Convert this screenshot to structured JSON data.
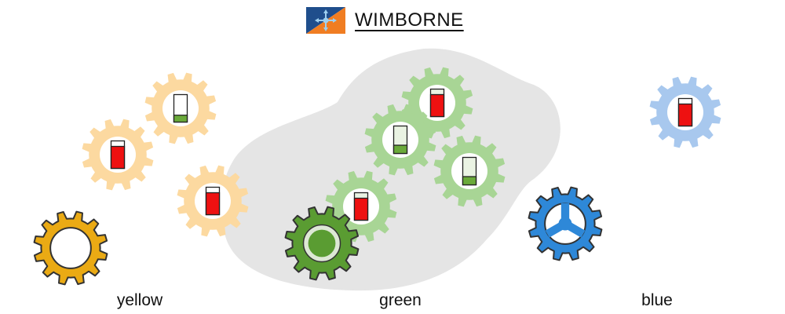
{
  "header": {
    "title": "WIMBORNE",
    "logo_icon": "compass-flag-icon"
  },
  "palette": {
    "yellow_light": "#fcd9a0",
    "yellow_dark": "#eaaa14",
    "green_light": "#a8d595",
    "green_dark": "#5a9c32",
    "blue_light": "#a8c8ee",
    "blue_dark": "#2e88d8",
    "blob": "#e5e5e5",
    "level_full": "#ee1111",
    "level_low": "#6aaa3a"
  },
  "groups": [
    {
      "label": "yellow",
      "color": "yellow"
    },
    {
      "label": "green",
      "color": "green"
    },
    {
      "label": "blue",
      "color": "blue"
    }
  ],
  "gears": [
    {
      "group": "yellow",
      "style": "light",
      "indicator": "full",
      "level": 0.8
    },
    {
      "group": "yellow",
      "style": "light",
      "indicator": "low",
      "level": 0.25
    },
    {
      "group": "yellow",
      "style": "light",
      "indicator": "full",
      "level": 0.8
    },
    {
      "group": "yellow",
      "style": "dark",
      "indicator": "none"
    },
    {
      "group": "green",
      "style": "light",
      "indicator": "full",
      "level": 0.8
    },
    {
      "group": "green",
      "style": "light",
      "indicator": "low",
      "level": 0.3
    },
    {
      "group": "green",
      "style": "light",
      "indicator": "low",
      "level": 0.3
    },
    {
      "group": "green",
      "style": "light",
      "indicator": "full",
      "level": 0.8
    },
    {
      "group": "green",
      "style": "dark",
      "indicator": "none"
    },
    {
      "group": "blue",
      "style": "light",
      "indicator": "full",
      "level": 0.8
    },
    {
      "group": "blue",
      "style": "dark",
      "indicator": "none"
    }
  ]
}
